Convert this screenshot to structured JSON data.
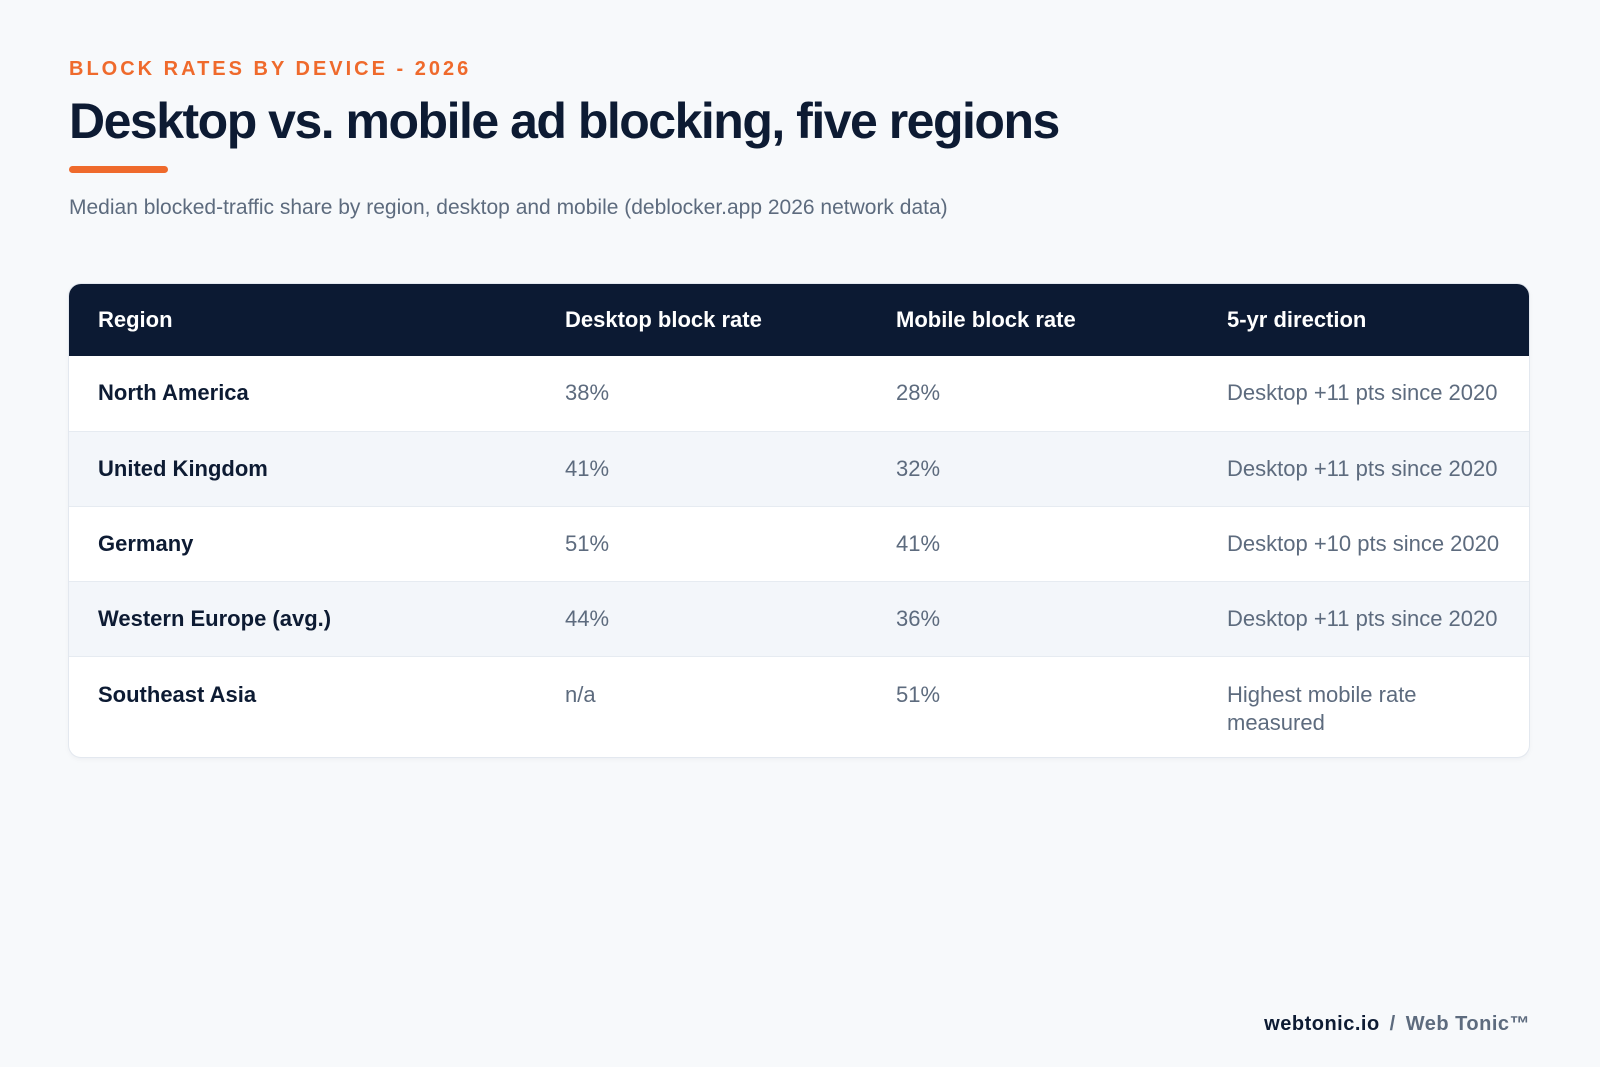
{
  "header": {
    "eyebrow": "BLOCK RATES BY DEVICE - 2026",
    "title": "Desktop vs. mobile ad blocking, five regions",
    "subtitle": "Median blocked-traffic share by region, desktop and mobile (deblocker.app 2026 network data)"
  },
  "chart_data": {
    "type": "table",
    "columns": [
      "Region",
      "Desktop block rate",
      "Mobile block rate",
      "5-yr direction"
    ],
    "rows": [
      {
        "region": "North America",
        "desktop": "38%",
        "mobile": "28%",
        "direction": "Desktop +11 pts since 2020"
      },
      {
        "region": "United Kingdom",
        "desktop": "41%",
        "mobile": "32%",
        "direction": "Desktop +11 pts since 2020"
      },
      {
        "region": "Germany",
        "desktop": "51%",
        "mobile": "41%",
        "direction": "Desktop +10 pts since 2020"
      },
      {
        "region": "Western Europe (avg.)",
        "desktop": "44%",
        "mobile": "36%",
        "direction": "Desktop +11 pts since 2020"
      },
      {
        "region": "Southeast Asia",
        "desktop": "n/a",
        "mobile": "51%",
        "direction": "Highest mobile rate measured"
      }
    ]
  },
  "footer": {
    "site": "webtonic.io",
    "separator": "/",
    "brand": "Web Tonic™"
  },
  "colors": {
    "accent": "#ef6a2c",
    "header_bg": "#0c1a33",
    "text_dark": "#0d1b33",
    "text_muted": "#5d6b7e",
    "row_alt": "#f3f6fa"
  }
}
